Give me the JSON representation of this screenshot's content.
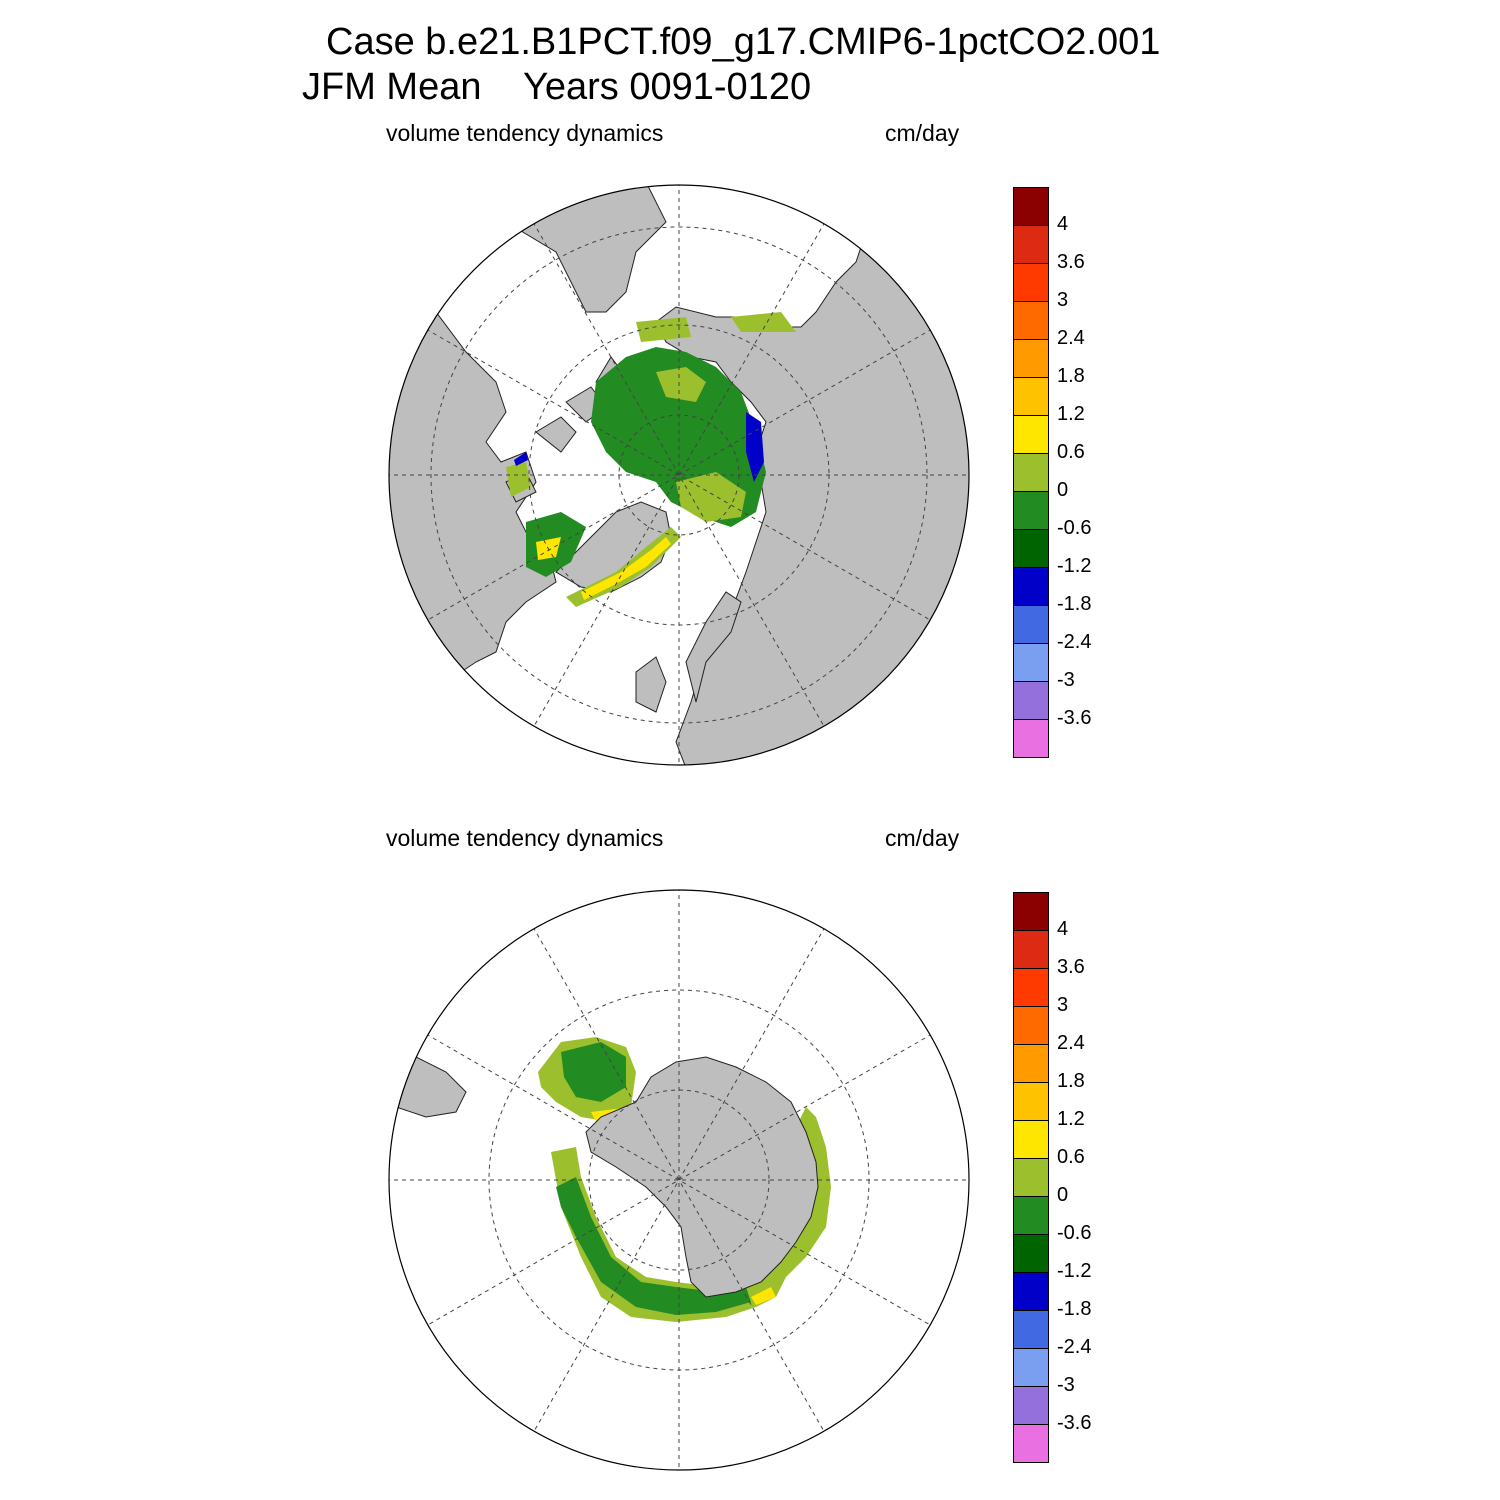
{
  "title": {
    "line1": "Case b.e21.B1PCT.f09_g17.CMIP6-1pctCO2.001",
    "line2": "JFM Mean    Years 0091-0120"
  },
  "panels": [
    {
      "hemisphere": "north",
      "left_label": "volume tendency dynamics",
      "right_label": "cm/day"
    },
    {
      "hemisphere": "south",
      "left_label": "volume tendency dynamics",
      "right_label": "cm/day"
    }
  ],
  "colorbar": {
    "colors": [
      "#8B0000",
      "#DD2A12",
      "#FF3A00",
      "#FF6A00",
      "#FF9A00",
      "#FFC200",
      "#FFE600",
      "#9CBF2E",
      "#228B22",
      "#006400",
      "#0000C8",
      "#4169E1",
      "#7B9FF0",
      "#9370DB",
      "#E870E0"
    ],
    "labels": [
      "4",
      "3.6",
      "3",
      "2.4",
      "1.8",
      "1.2",
      "0.6",
      "0",
      "-0.6",
      "-1.2",
      "-1.8",
      "-2.4",
      "-3",
      "-3.6"
    ]
  },
  "legend_colors": {
    "land": "#BEBEBE",
    "ocean_no_ice": "#FFFFFF"
  }
}
